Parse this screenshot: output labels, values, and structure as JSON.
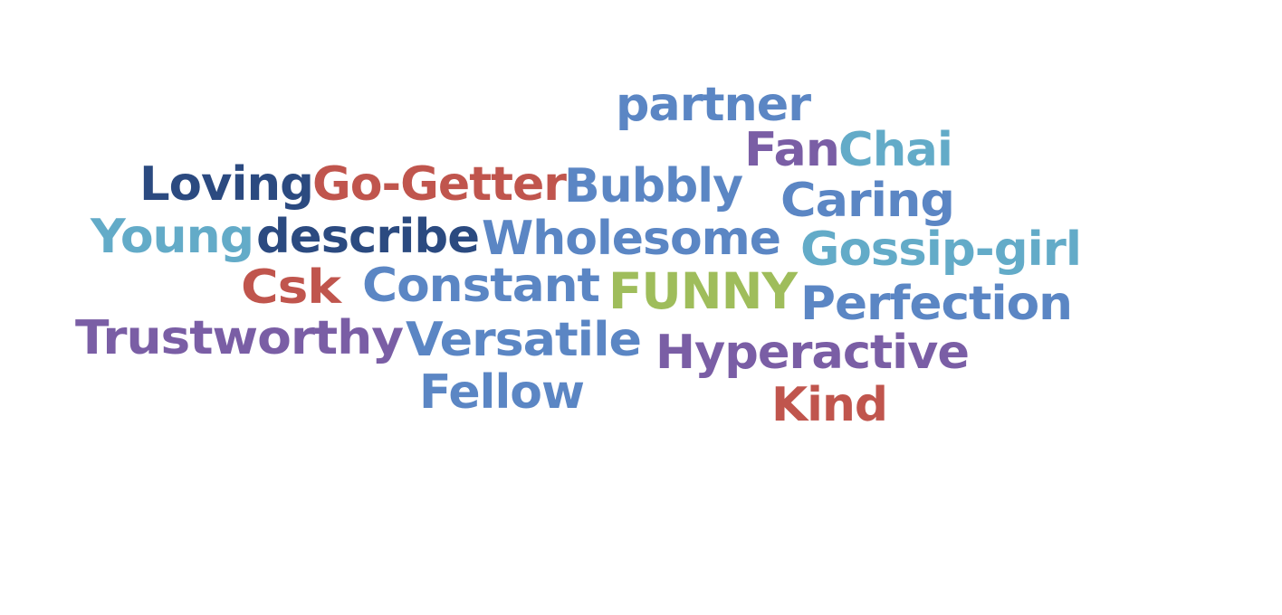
{
  "palette": {
    "navy": "#2b4a80",
    "blue": "#5b86c4",
    "teal": "#63abc8",
    "red": "#c0554d",
    "purple": "#7a5ea5",
    "green": "#9fbd5b"
  },
  "words": [
    {
      "text": "partner",
      "color": "#5b86c4"
    },
    {
      "text": "Fan",
      "color": "#7a5ea5"
    },
    {
      "text": "Chai",
      "color": "#63abc8"
    },
    {
      "text": "Loving",
      "color": "#2b4a80"
    },
    {
      "text": "Go-Getter",
      "color": "#c0554d"
    },
    {
      "text": "Bubbly",
      "color": "#5b86c4"
    },
    {
      "text": "Caring",
      "color": "#5b86c4"
    },
    {
      "text": "Young",
      "color": "#63abc8"
    },
    {
      "text": "describe",
      "color": "#2b4a80"
    },
    {
      "text": "Wholesome",
      "color": "#5b86c4"
    },
    {
      "text": "Gossip-girl",
      "color": "#63abc8"
    },
    {
      "text": "Csk",
      "color": "#c0554d"
    },
    {
      "text": "Constant",
      "color": "#5b86c4"
    },
    {
      "text": "FUNNY",
      "color": "#9fbd5b"
    },
    {
      "text": "Perfection",
      "color": "#5b86c4"
    },
    {
      "text": "Trustworthy",
      "color": "#7a5ea5"
    },
    {
      "text": "Versatile",
      "color": "#5b86c4"
    },
    {
      "text": "Hyperactive",
      "color": "#7a5ea5"
    },
    {
      "text": "Fellow",
      "color": "#5b86c4"
    },
    {
      "text": "Kind",
      "color": "#c0554d"
    }
  ]
}
